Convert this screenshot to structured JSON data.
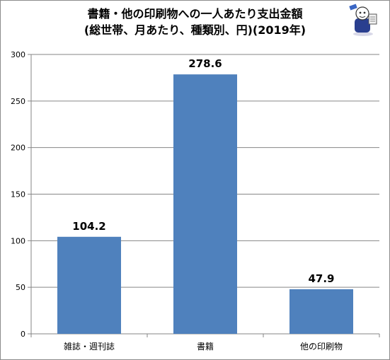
{
  "chart_data": {
    "type": "bar",
    "title_line1": "書籍・他の印刷物への一人あたり支出金額",
    "title_line2": "(総世帯、月あたり、種類別、円)(2019年)",
    "categories": [
      "雑誌・週刊誌",
      "書籍",
      "他の印刷物"
    ],
    "values": [
      104.2,
      278.6,
      47.9
    ],
    "value_labels": [
      "104.2",
      "278.6",
      "47.9"
    ],
    "ylim": [
      0,
      300
    ],
    "yticks": [
      0,
      50,
      100,
      150,
      200,
      250,
      300
    ],
    "xlabel": "",
    "ylabel": "",
    "grid": true,
    "legend": "none",
    "bar_color": "#4f81bd",
    "grid_color": "#868686"
  }
}
